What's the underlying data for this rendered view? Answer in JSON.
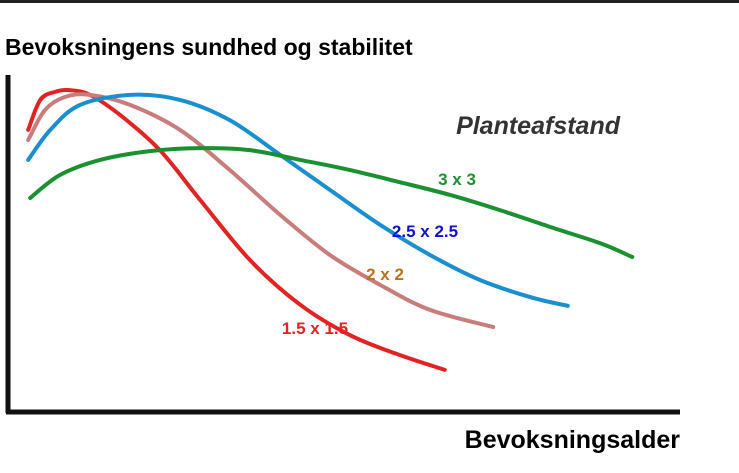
{
  "chart_data": {
    "type": "line",
    "title": "Bevoksningens sundhed og stabilitet",
    "x_label": "Bevoksningsalder",
    "legend_title": "Planteafstand",
    "xlim": [
      0,
      100
    ],
    "ylim": [
      0,
      100
    ],
    "series": [
      {
        "name": "1.5 x 1.5",
        "color": "#e02424",
        "label_color": "#e02424",
        "x": [
          3.0,
          4.8,
          7.0,
          9.2,
          12.2,
          16.7,
          22.6,
          28.6,
          36.0,
          43.5,
          50.9,
          58.3,
          65.0
        ],
        "values": [
          83.7,
          92.6,
          95.0,
          95.5,
          94.1,
          88.1,
          77.7,
          62.9,
          45.1,
          31.8,
          22.8,
          16.9,
          12.5
        ]
      },
      {
        "name": "2 x 2",
        "color": "#c87c7c",
        "label_color": "#b8731e",
        "x": [
          3.0,
          5.5,
          8.5,
          12.2,
          18.2,
          25.6,
          33.0,
          40.5,
          47.9,
          55.4,
          62.8,
          72.2
        ],
        "values": [
          80.7,
          89.6,
          93.5,
          94.1,
          91.1,
          83.7,
          71.8,
          58.5,
          46.6,
          37.7,
          30.3,
          25.2
        ]
      },
      {
        "name": "2.5 x 2.5",
        "color": "#1a8fd0",
        "label_color": "#1010d0",
        "x": [
          3.0,
          6.3,
          10.7,
          18.2,
          25.6,
          33.0,
          40.5,
          47.9,
          55.4,
          62.8,
          70.2,
          77.7,
          83.3
        ],
        "values": [
          74.8,
          83.7,
          91.1,
          94.1,
          92.6,
          86.6,
          76.3,
          65.9,
          55.5,
          46.6,
          39.2,
          34.1,
          31.5
        ]
      },
      {
        "name": "3 x 3",
        "color": "#1a9030",
        "label_color": "#1a9030",
        "x": [
          3.3,
          7.7,
          13.7,
          21.1,
          28.6,
          36.0,
          43.5,
          50.9,
          58.3,
          65.8,
          73.2,
          80.7,
          88.1,
          92.9
        ],
        "values": [
          63.5,
          70.3,
          74.8,
          77.4,
          78.3,
          77.7,
          74.8,
          71.8,
          68.2,
          64.4,
          59.9,
          54.9,
          50.1,
          46.0
        ]
      }
    ]
  }
}
